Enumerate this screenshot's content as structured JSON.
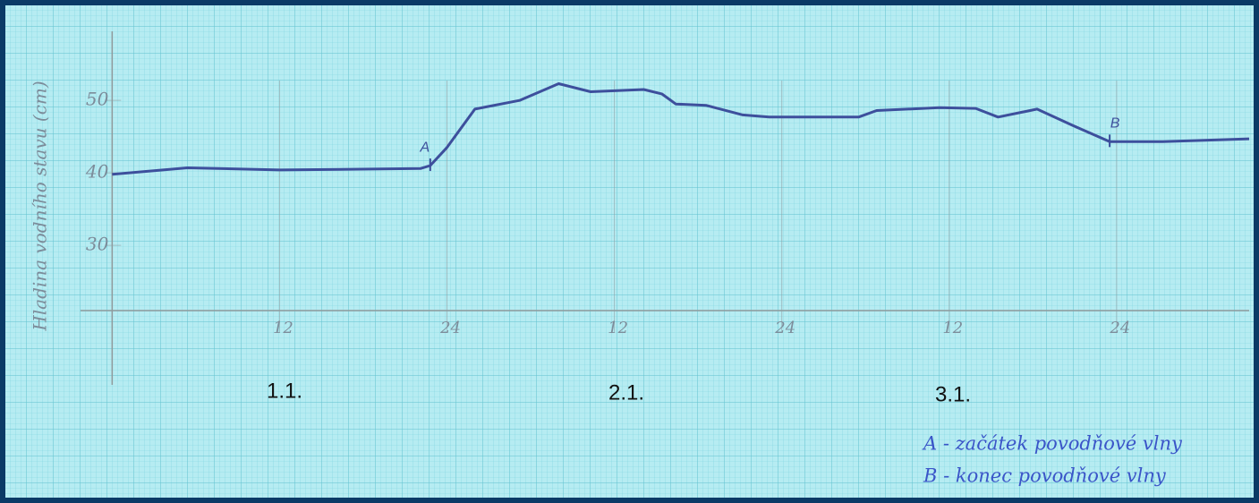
{
  "chart_data": {
    "type": "line",
    "y_label": "Hladina vodního stavu (cm)",
    "x": [
      0,
      5.4,
      12,
      22.1,
      22.8,
      24,
      26,
      29.2,
      32,
      34.3,
      38.1,
      39.4,
      40.4,
      42.6,
      45.2,
      47.1,
      53.5,
      54.8,
      59.3,
      61.9,
      63.5,
      66.3,
      68.9,
      71.5,
      75.3,
      81.5
    ],
    "values": [
      39.8,
      40.7,
      40.4,
      40.6,
      41,
      43.5,
      48.8,
      50,
      52.3,
      51.2,
      51.5,
      50.9,
      49.5,
      49.3,
      48,
      47.7,
      47.7,
      48.6,
      49,
      48.9,
      47.7,
      48.8,
      46.5,
      44.3,
      44.3,
      44.7
    ],
    "color": "#3d4f9c",
    "xlim": [
      -6.5,
      81.5
    ],
    "ylim": [
      21,
      62
    ],
    "xticks": [
      {
        "value": 12,
        "label": "12"
      },
      {
        "value": 24,
        "label": "24"
      },
      {
        "value": 36,
        "label": "12"
      },
      {
        "value": 48,
        "label": "24"
      },
      {
        "value": 60,
        "label": "12"
      },
      {
        "value": 72,
        "label": "24"
      }
    ],
    "yticks": [
      30,
      40,
      50
    ],
    "grid": true,
    "annotations": [
      {
        "text": "A",
        "x": 22.8,
        "y": 41
      },
      {
        "text": "B",
        "x": 71.5,
        "y": 44.3
      }
    ],
    "day_labels": [
      "1.1.",
      "2.1.",
      "3.1."
    ],
    "notes": [
      "A - začátek povodňové vlny",
      "B - konec povodňové vlny"
    ]
  }
}
